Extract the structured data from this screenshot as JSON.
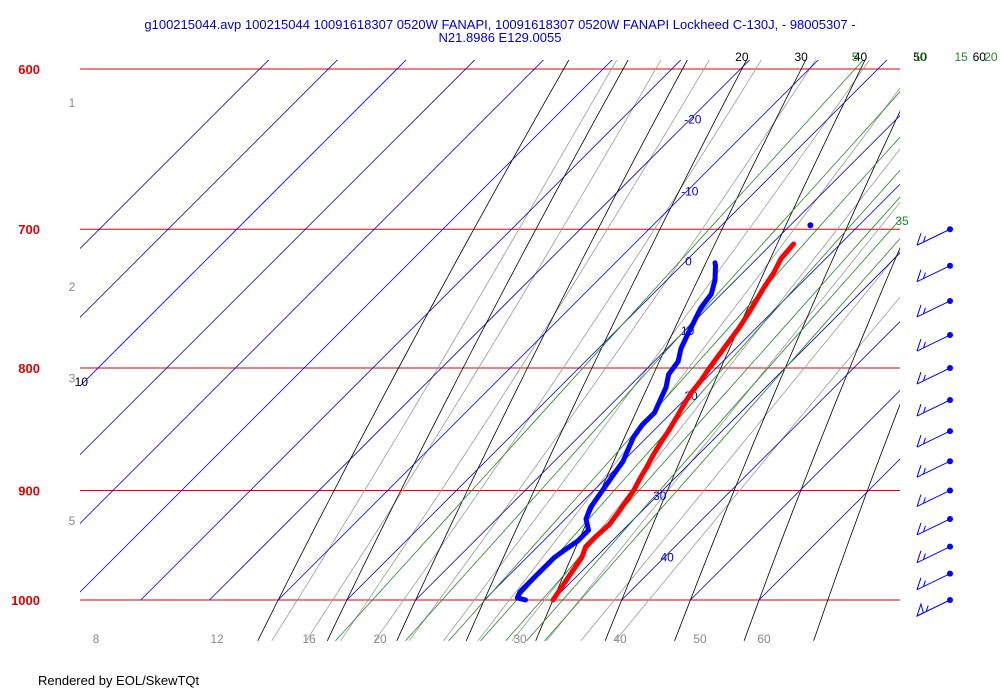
{
  "title": {
    "line1": "g100215044.avp 100215044 10091618307 0520W FANAPI, 10091618307 0520W FANAPI Lockheed C-130J, - 98005307 -",
    "line2": "N21.8986 E129.0055"
  },
  "footer": "Rendered by EOL/SkewTQt",
  "colors": {
    "isobar": "#e00000",
    "isotherm": "#0000cc",
    "dry_adiabat": "#000000",
    "moist_adiabat": "#9a9a9a",
    "mixing_ratio": "#228822",
    "temperature": "#ff0000",
    "dewpoint": "#0000ff",
    "height_label": "#888888"
  },
  "chart_data": {
    "type": "line",
    "chart_kind": "skew-T log-P sounding",
    "pressure_levels": [
      "600",
      "700",
      "800",
      "900",
      "1000"
    ],
    "isotherm_labels": [
      "-20",
      "-10",
      "0",
      "10",
      "20",
      "30",
      "40"
    ],
    "dry_adiabat_top_labels": [
      "20",
      "30",
      "40",
      "50",
      "60"
    ],
    "dry_adiabat_side_label": "10",
    "mixing_ratio_labels": [
      "5",
      "10",
      "15",
      "20",
      "25",
      "30",
      "35"
    ],
    "height_labels": [
      "1",
      "2",
      "3",
      "5"
    ],
    "bottom_axis_labels": [
      "8",
      "12",
      "16",
      "20",
      "30",
      "40",
      "50",
      "60"
    ],
    "series": [
      {
        "id": "temperature",
        "points": [
          [
            30.0,
            1000
          ],
          [
            29.5,
            990
          ],
          [
            29.0,
            980
          ],
          [
            28.5,
            970
          ],
          [
            28.0,
            960
          ],
          [
            27.0,
            950
          ],
          [
            27.0,
            940
          ],
          [
            27.2,
            930
          ],
          [
            26.8,
            920
          ],
          [
            26.3,
            910
          ],
          [
            25.8,
            900
          ],
          [
            25.0,
            890
          ],
          [
            24.3,
            880
          ],
          [
            23.5,
            870
          ],
          [
            22.8,
            860
          ],
          [
            22.2,
            850
          ],
          [
            21.5,
            840
          ],
          [
            20.7,
            830
          ],
          [
            20.0,
            820
          ],
          [
            19.6,
            810
          ],
          [
            19.0,
            800
          ],
          [
            18.5,
            790
          ],
          [
            18.0,
            780
          ],
          [
            17.5,
            770
          ],
          [
            16.8,
            760
          ],
          [
            16.0,
            750
          ],
          [
            15.2,
            740
          ],
          [
            14.5,
            730
          ],
          [
            13.5,
            720
          ],
          [
            13.2,
            710
          ]
        ]
      },
      {
        "id": "dewpoint",
        "points": [
          [
            26.0,
            1000
          ],
          [
            24.5,
            998
          ],
          [
            24.0,
            992
          ],
          [
            24.0,
            984
          ],
          [
            24.0,
            976
          ],
          [
            24.0,
            968
          ],
          [
            24.0,
            960
          ],
          [
            24.5,
            952
          ],
          [
            25.0,
            945
          ],
          [
            25.0,
            935
          ],
          [
            23.0,
            925
          ],
          [
            22.0,
            915
          ],
          [
            21.5,
            905
          ],
          [
            21.0,
            895
          ],
          [
            20.5,
            885
          ],
          [
            20.0,
            875
          ],
          [
            19.0,
            865
          ],
          [
            18.0,
            855
          ],
          [
            17.5,
            845
          ],
          [
            17.5,
            835
          ],
          [
            16.5,
            825
          ],
          [
            15.5,
            815
          ],
          [
            14.0,
            805
          ],
          [
            13.5,
            795
          ],
          [
            12.0,
            785
          ],
          [
            11.0,
            775
          ],
          [
            10.0,
            765
          ],
          [
            9.0,
            755
          ],
          [
            8.5,
            745
          ],
          [
            7.0,
            735
          ],
          [
            5.0,
            725
          ],
          [
            4.5,
            723
          ]
        ]
      }
    ],
    "isolated_point": {
      "temperature": 13.5,
      "pressure": 700
    },
    "wind_barbs": {
      "pressures": [
        700,
        725,
        750,
        775,
        800,
        825,
        850,
        875,
        900,
        925,
        950,
        975,
        1000
      ],
      "speeds_kt": [
        15,
        15,
        15,
        15,
        15,
        15,
        15,
        15,
        15,
        15,
        15,
        15,
        55
      ],
      "direction_deg": [
        60,
        60,
        60,
        60,
        60,
        60,
        60,
        60,
        60,
        60,
        60,
        60,
        60
      ]
    },
    "xlabel": "",
    "ylabel": ""
  }
}
